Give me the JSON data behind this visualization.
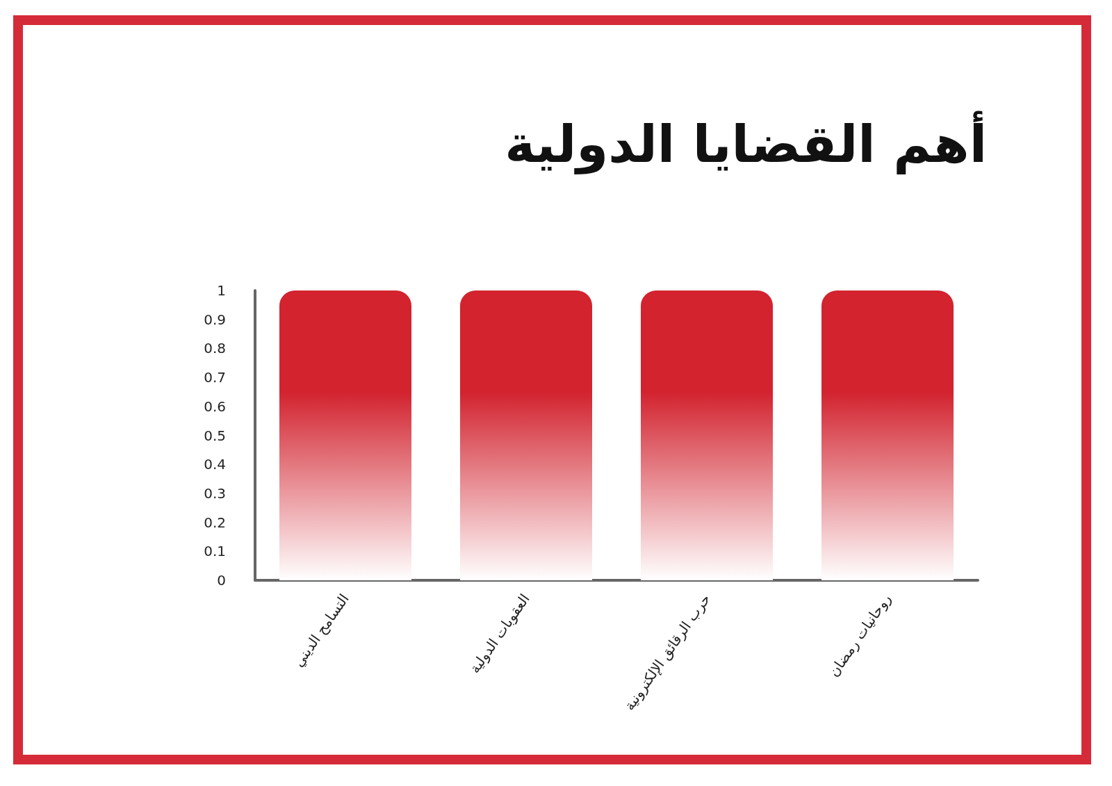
{
  "chart_data": {
    "type": "bar",
    "title": "أهم القضايا الدولية",
    "categories": [
      "التسامح الديني",
      "العقوبات الدولية",
      "حرب الرقائق الإلكترونية",
      "روحانيات رمضان"
    ],
    "values": [
      1,
      1,
      1,
      1
    ],
    "color": "#d2232f",
    "ylim": [
      0,
      1
    ],
    "yticks": [
      0,
      0.1,
      0.2,
      0.3,
      0.4,
      0.5,
      0.6,
      0.7,
      0.8,
      0.9,
      1
    ],
    "grid": false
  }
}
